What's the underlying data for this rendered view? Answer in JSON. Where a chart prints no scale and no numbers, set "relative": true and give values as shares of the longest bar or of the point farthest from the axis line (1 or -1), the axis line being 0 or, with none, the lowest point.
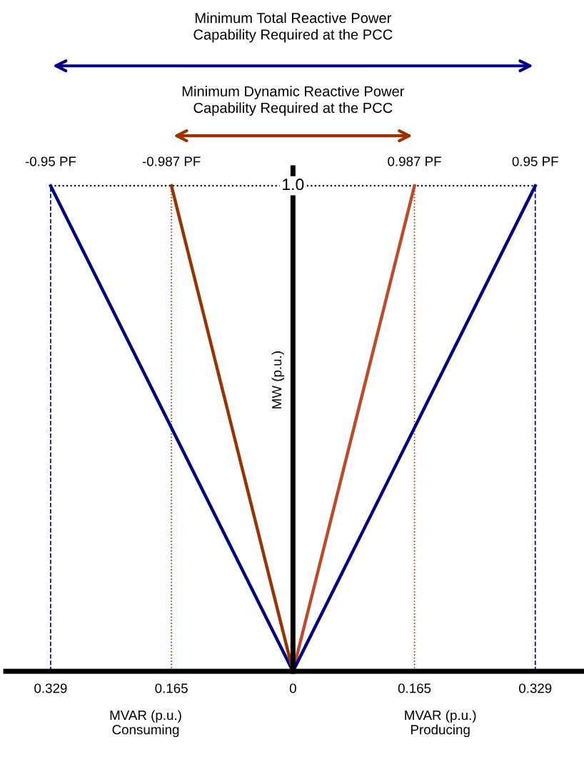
{
  "chart_data": {
    "type": "line",
    "title": "Minimum Total Reactive Power Capability Required at the PCC",
    "subtitle": "Minimum Dynamic Reactive Power Capability Required at the PCC",
    "ylabel": "MW (p.u.)",
    "series": [
      {
        "color": "#000080",
        "x": [
          0,
          -0.329
        ],
        "values": [
          0,
          1.0
        ]
      },
      {
        "color": "#993300",
        "x": [
          0,
          -0.165
        ],
        "values": [
          0,
          1.0
        ]
      },
      {
        "color": "#bf4a2a",
        "x": [
          0,
          0.165
        ],
        "values": [
          0,
          1.0
        ]
      },
      {
        "color": "#000080",
        "x": [
          0,
          0.329
        ],
        "values": [
          0,
          1.0
        ]
      }
    ],
    "xlim": [
      -0.39,
      0.395
    ],
    "relative": true,
    "xticks": [
      {
        "value": -0.329,
        "label": "0.329"
      },
      {
        "value": -0.165,
        "label": "0.165"
      },
      0,
      {
        "value": 0.165,
        "label": "0.165"
      },
      {
        "value": 0.329,
        "label": "0.329"
      }
    ],
    "ref_lines": [
      {
        "axis": "x",
        "value": -0.329,
        "color": "#000080",
        "line_style": "dashed"
      },
      {
        "axis": "x",
        "value": -0.165,
        "color": "#993300",
        "line_style": "dotted"
      },
      {
        "axis": "x",
        "value": 0.165,
        "color": "#993300",
        "line_style": "dotted"
      },
      {
        "axis": "x",
        "value": 0.329,
        "color": "#000080",
        "line_style": "dashed"
      },
      {
        "axis": "y",
        "value": 1.0,
        "color": "#000000",
        "line_style": "dotted"
      }
    ],
    "annotations": [
      {
        "text": "1.0",
        "x": 0,
        "y": 1.0
      },
      {
        "text": "-0.95 PF",
        "x": -0.329,
        "y": 1.0
      },
      {
        "text": "-0.987 PF",
        "x": -0.165,
        "y": 1.0
      },
      {
        "text": "0.987 PF",
        "x": 0.165,
        "y": 1.0
      },
      {
        "text": "0.95 PF",
        "x": 0.329,
        "y": 1.0
      },
      "MVAR (p.u.)\nConsuming",
      "MVAR (p.u.)\nProducing"
    ],
    "grid": false,
    "legend": false,
    "line_style": "solid",
    "marker": "none"
  }
}
